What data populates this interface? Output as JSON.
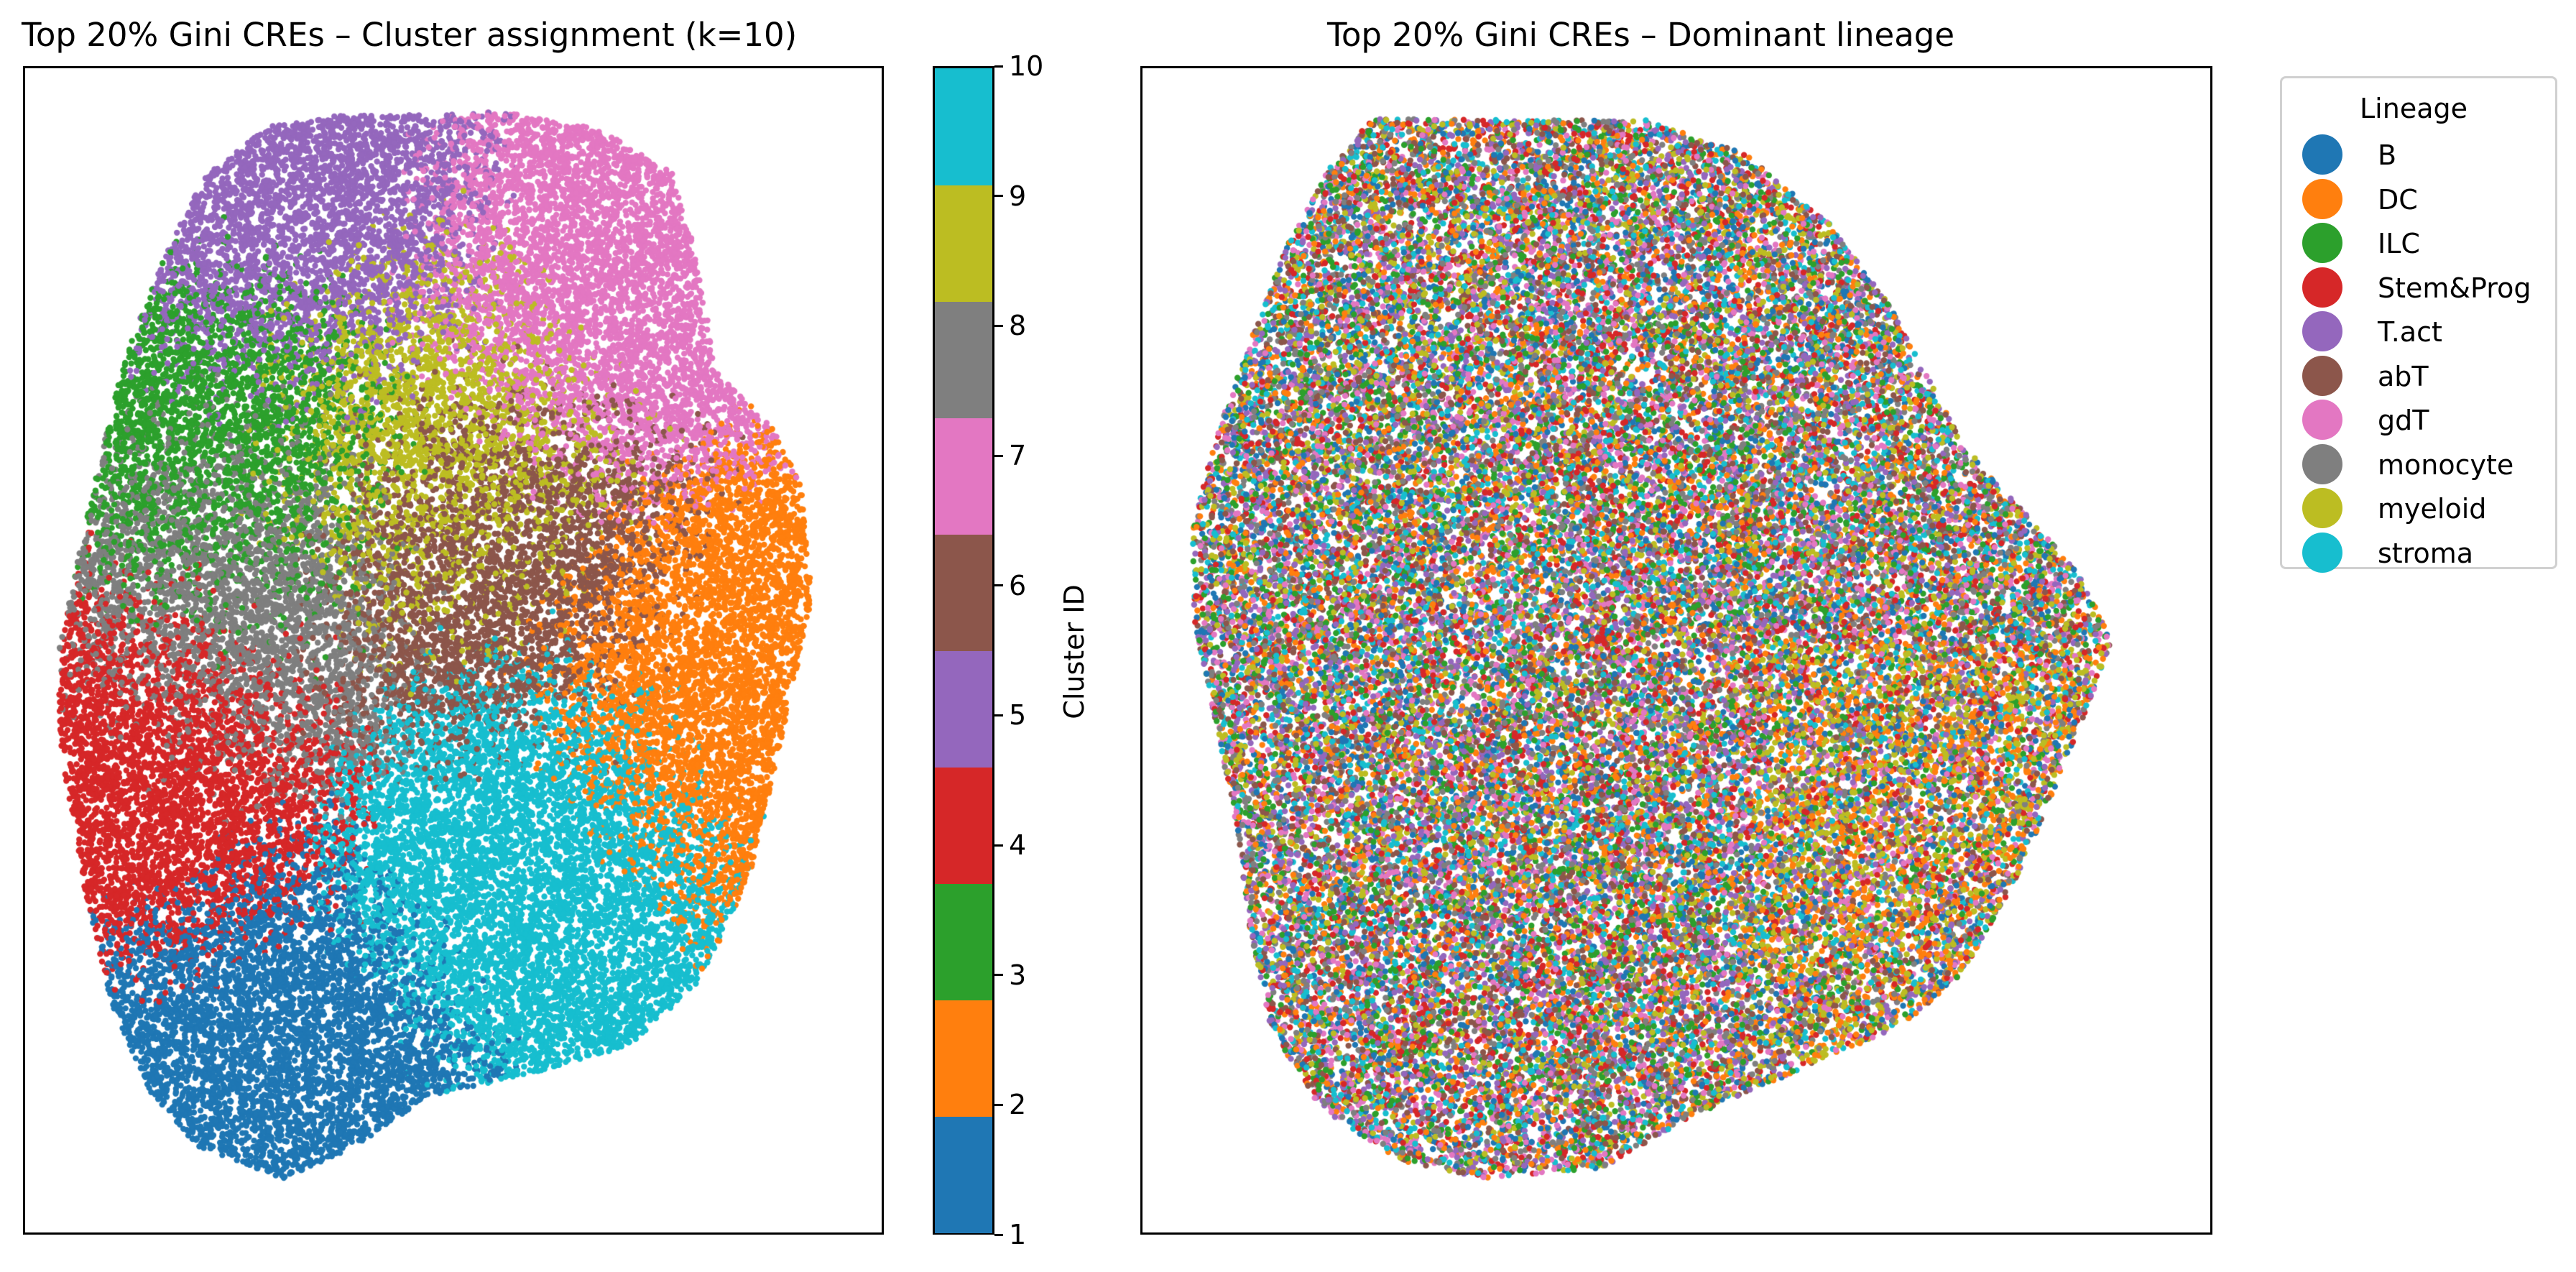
{
  "chart_data": [
    {
      "type": "scatter",
      "title": "Top 20% Gini CREs – Cluster assignment (k=10)",
      "xlabel": "",
      "ylabel": "",
      "axis_ticks": false,
      "color_by": "cluster",
      "colorbar": {
        "label": "Cluster ID",
        "range": [
          1,
          10
        ],
        "ticks": [
          "1",
          "2",
          "3",
          "4",
          "5",
          "6",
          "7",
          "8",
          "9",
          "10"
        ],
        "colors": [
          "#1f77b4",
          "#ff7f0e",
          "#2ca02c",
          "#d62728",
          "#9467bd",
          "#8c564b",
          "#e377c2",
          "#7f7f7f",
          "#bcbd22",
          "#17becf"
        ]
      },
      "clusters": [
        {
          "id": 1,
          "color": "#1f77b4",
          "region": "bottom"
        },
        {
          "id": 2,
          "color": "#ff7f0e",
          "region": "right"
        },
        {
          "id": 3,
          "color": "#2ca02c",
          "region": "upper-left"
        },
        {
          "id": 4,
          "color": "#d62728",
          "region": "left"
        },
        {
          "id": 5,
          "color": "#9467bd",
          "region": "top-left"
        },
        {
          "id": 6,
          "color": "#8c564b",
          "region": "center"
        },
        {
          "id": 7,
          "color": "#e377c2",
          "region": "top-right"
        },
        {
          "id": 8,
          "color": "#7f7f7f",
          "region": "center-left"
        },
        {
          "id": 9,
          "color": "#bcbd22",
          "region": "center-top"
        },
        {
          "id": 10,
          "color": "#17becf",
          "region": "lower-center"
        }
      ]
    },
    {
      "type": "scatter",
      "title": "Top 20% Gini CREs – Dominant lineage",
      "xlabel": "",
      "ylabel": "",
      "axis_ticks": false,
      "color_by": "lineage",
      "legend": {
        "title": "Lineage",
        "placement": "outside-upper-right",
        "entries": [
          {
            "name": "B",
            "color": "#1f77b4"
          },
          {
            "name": "DC",
            "color": "#ff7f0e"
          },
          {
            "name": "ILC",
            "color": "#2ca02c"
          },
          {
            "name": "Stem&Prog",
            "color": "#d62728"
          },
          {
            "name": "T.act",
            "color": "#9467bd"
          },
          {
            "name": "abT",
            "color": "#8c564b"
          },
          {
            "name": "gdT",
            "color": "#e377c2"
          },
          {
            "name": "monocyte",
            "color": "#7f7f7f"
          },
          {
            "name": "myeloid",
            "color": "#bcbd22"
          },
          {
            "name": "stroma",
            "color": "#17becf"
          }
        ]
      }
    }
  ]
}
